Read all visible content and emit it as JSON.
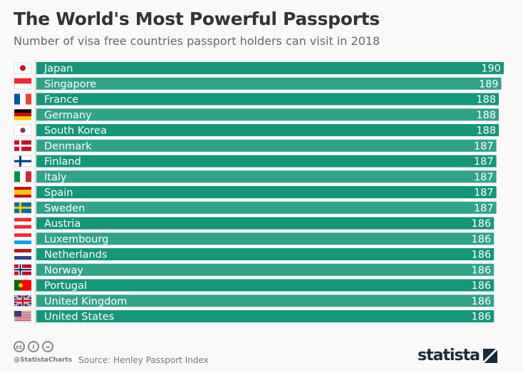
{
  "chart_data": {
    "type": "bar",
    "orientation": "horizontal",
    "title": "The World's Most Powerful Passports",
    "subtitle": "Number of visa free countries passport holders can visit in 2018",
    "categories": [
      "Japan",
      "Singapore",
      "France",
      "Germany",
      "South Korea",
      "Denmark",
      "Finland",
      "Italy",
      "Spain",
      "Sweden",
      "Austria",
      "Luxembourg",
      "Netherlands",
      "Norway",
      "Portugal",
      "United Kingdom",
      "United States"
    ],
    "values": [
      190,
      189,
      188,
      188,
      188,
      187,
      187,
      187,
      187,
      187,
      186,
      186,
      186,
      186,
      186,
      186,
      186
    ],
    "xlim": [
      0,
      190
    ],
    "grid": false,
    "bar_color": "#15957a",
    "flag_icons": [
      "japan-flag",
      "singapore-flag",
      "france-flag",
      "germany-flag",
      "south-korea-flag",
      "denmark-flag",
      "finland-flag",
      "italy-flag",
      "spain-flag",
      "sweden-flag",
      "austria-flag",
      "luxembourg-flag",
      "netherlands-flag",
      "norway-flag",
      "portugal-flag",
      "uk-flag",
      "us-flag"
    ]
  },
  "footer": {
    "handle": "@StatistaCharts",
    "source": "Source: Henley Passport Index",
    "logo": "statista",
    "license_icons": [
      "cc-icon",
      "by-icon",
      "nd-icon"
    ]
  }
}
